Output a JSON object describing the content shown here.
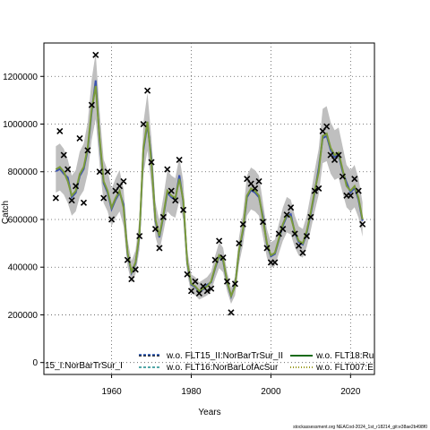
{
  "chart_data": {
    "type": "line",
    "xlabel": "Years",
    "ylabel": "Catch",
    "xlim": [
      1943,
      2026
    ],
    "ylim": [
      -50000,
      1340000
    ],
    "xticks": [
      1960,
      1980,
      2000,
      2020
    ],
    "yticks": [
      0,
      200000,
      400000,
      600000,
      800000,
      1000000,
      1200000
    ],
    "xtick_labels": [
      "1960",
      "1980",
      "2000",
      "2020"
    ],
    "ytick_labels": [
      "0",
      "200000",
      "400000",
      "600000",
      "800000",
      "1000000",
      "1200000"
    ],
    "grid": true,
    "legend_position": "bottom",
    "legend": [
      {
        "label": "15_I:NorBarTrSur_I",
        "color": "#000000",
        "style": "dashed"
      },
      {
        "label": "w.o. FLT15_II:NorBarTrSur_II",
        "color": "#1f4fb0",
        "style": "dashed"
      },
      {
        "label": "w.o. FLT16:NorBarLofAcSur",
        "color": "#1a8a8a",
        "style": "dashed"
      },
      {
        "label": "w.o. FLT18:Ru",
        "color": "#1a6b1a",
        "style": "solid"
      },
      {
        "label": "w.o. FLT007:E",
        "color": "#9a9a20",
        "style": "dotted"
      }
    ],
    "colors": {
      "band": "#bfbfbf",
      "fit": "#7a9a3a",
      "fit_alt": "#3b52b0",
      "obs": "#000000"
    },
    "observed_marker": "x",
    "x": [
      1946,
      1947,
      1948,
      1949,
      1950,
      1951,
      1952,
      1953,
      1954,
      1955,
      1956,
      1957,
      1958,
      1959,
      1960,
      1961,
      1962,
      1963,
      1964,
      1965,
      1966,
      1967,
      1968,
      1969,
      1970,
      1971,
      1972,
      1973,
      1974,
      1975,
      1976,
      1977,
      1978,
      1979,
      1980,
      1981,
      1982,
      1983,
      1984,
      1985,
      1986,
      1987,
      1988,
      1989,
      1990,
      1991,
      1992,
      1993,
      1994,
      1995,
      1996,
      1997,
      1998,
      1999,
      2000,
      2001,
      2002,
      2003,
      2004,
      2005,
      2006,
      2007,
      2008,
      2009,
      2010,
      2011,
      2012,
      2013,
      2014,
      2015,
      2016,
      2017,
      2018,
      2019,
      2020,
      2021,
      2022,
      2023
    ],
    "series": [
      {
        "name": "observed",
        "values": [
          690000,
          970000,
          870000,
          810000,
          680000,
          740000,
          940000,
          670000,
          890000,
          1080000,
          1290000,
          800000,
          690000,
          800000,
          600000,
          720000,
          740000,
          760000,
          430000,
          350000,
          390000,
          530000,
          1000000,
          1140000,
          840000,
          560000,
          480000,
          610000,
          810000,
          720000,
          680000,
          850000,
          640000,
          370000,
          300000,
          340000,
          290000,
          320000,
          300000,
          310000,
          430000,
          510000,
          440000,
          340000,
          210000,
          330000,
          500000,
          580000,
          770000,
          750000,
          730000,
          760000,
          590000,
          480000,
          420000,
          420000,
          540000,
          560000,
          620000,
          650000,
          540000,
          490000,
          460000,
          530000,
          610000,
          720000,
          730000,
          970000,
          990000,
          870000,
          850000,
          870000,
          780000,
          700000,
          700000,
          770000,
          720000,
          580000
        ]
      },
      {
        "name": "fitted",
        "values": [
          810000,
          820000,
          800000,
          760000,
          700000,
          720000,
          790000,
          820000,
          900000,
          1060000,
          1160000,
          940000,
          760000,
          720000,
          650000,
          690000,
          720000,
          650000,
          460000,
          380000,
          420000,
          540000,
          900000,
          1010000,
          840000,
          600000,
          530000,
          620000,
          720000,
          700000,
          690000,
          770000,
          680000,
          420000,
          330000,
          320000,
          300000,
          310000,
          320000,
          340000,
          400000,
          450000,
          430000,
          340000,
          280000,
          320000,
          470000,
          560000,
          700000,
          730000,
          720000,
          700000,
          600000,
          500000,
          450000,
          460000,
          520000,
          580000,
          620000,
          610000,
          550000,
          510000,
          500000,
          550000,
          630000,
          720000,
          800000,
          950000,
          960000,
          900000,
          870000,
          880000,
          810000,
          740000,
          720000,
          740000,
          690000,
          600000
        ]
      }
    ]
  },
  "footer": {
    "source": "stockassessment.org NEACod-2024_1st_r18214_git:e38ae2b498f0"
  }
}
